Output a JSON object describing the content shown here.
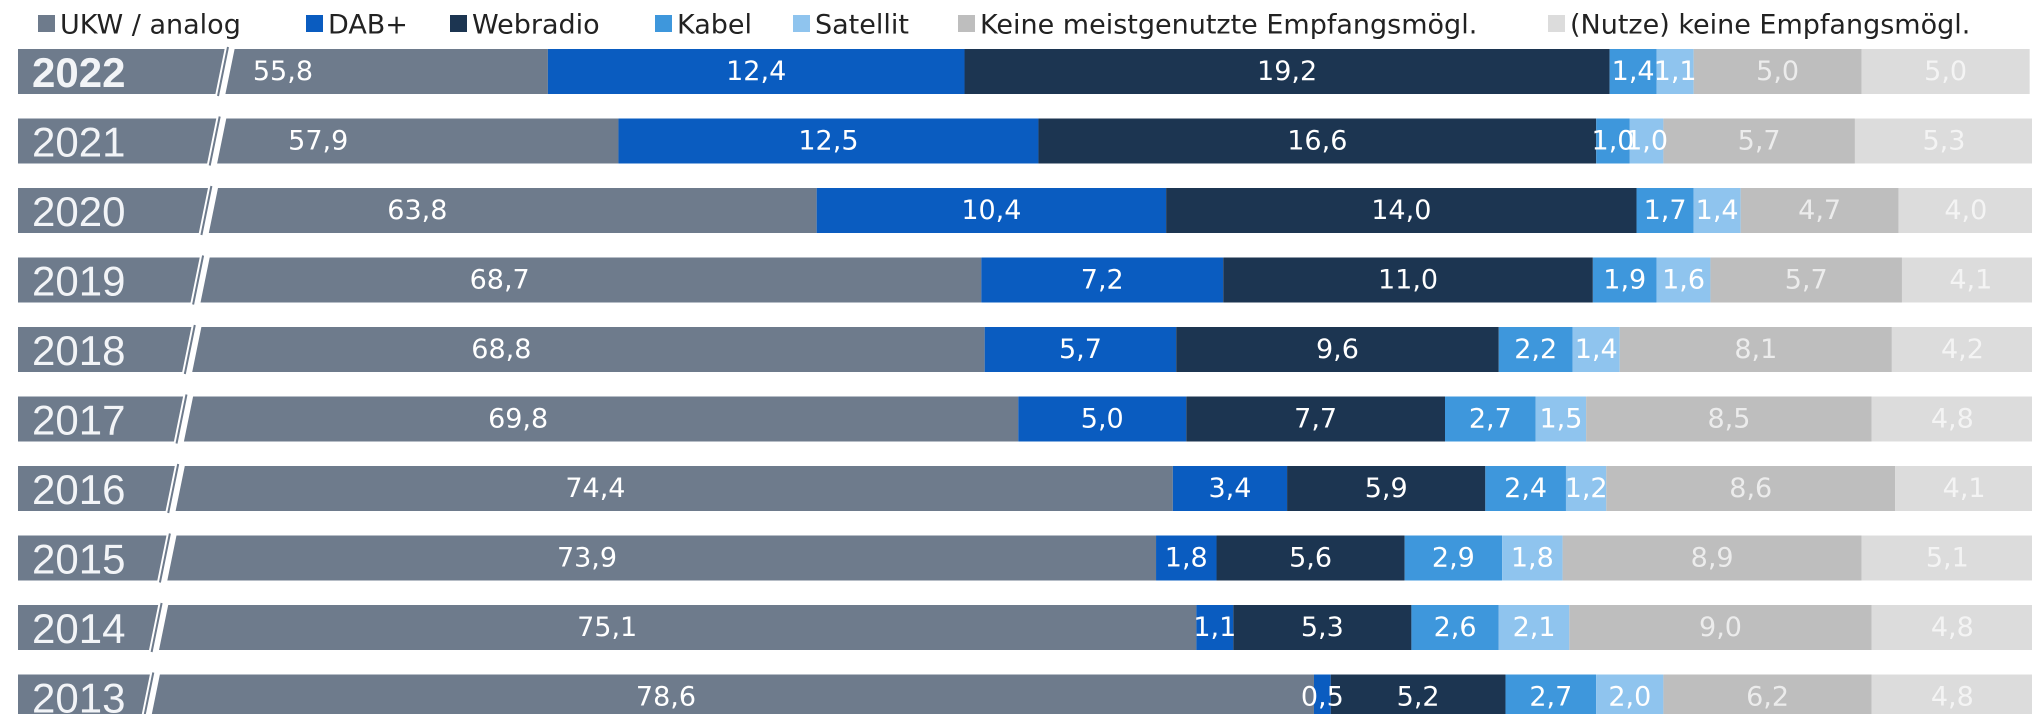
{
  "chart_data": {
    "type": "bar",
    "orientation": "horizontal",
    "stacked": true,
    "categories": [
      "2022",
      "2021",
      "2020",
      "2019",
      "2018",
      "2017",
      "2016",
      "2015",
      "2014",
      "2013"
    ],
    "series": [
      {
        "name": "UKW / analog",
        "color": "#6e7b8c",
        "values": [
          55.8,
          57.9,
          63.8,
          68.7,
          68.8,
          69.8,
          74.4,
          73.9,
          75.1,
          78.6
        ],
        "value_labels": [
          "55,8",
          "57,9",
          "63,8",
          "68,7",
          "68,8",
          "69,8",
          "74,4",
          "73,9",
          "75,1",
          "78,6"
        ]
      },
      {
        "name": "DAB+",
        "color": "#0a5cc0",
        "values": [
          12.4,
          12.5,
          10.4,
          7.2,
          5.7,
          5.0,
          3.4,
          1.8,
          1.1,
          0.5
        ],
        "value_labels": [
          "12,4",
          "12,5",
          "10,4",
          "7,2",
          "5,7",
          "5,0",
          "3,4",
          "1,8",
          "1,1",
          "0,5"
        ]
      },
      {
        "name": "Webradio",
        "color": "#1c3551",
        "values": [
          19.2,
          16.6,
          14.0,
          11.0,
          9.6,
          7.7,
          5.9,
          5.6,
          5.3,
          5.2
        ],
        "value_labels": [
          "19,2",
          "16,6",
          "14,0",
          "11,0",
          "9,6",
          "7,7",
          "5,9",
          "5,6",
          "5,3",
          "5,2"
        ]
      },
      {
        "name": "Kabel",
        "color": "#3e97dc",
        "values": [
          1.4,
          1.0,
          1.7,
          1.9,
          2.2,
          2.7,
          2.4,
          2.9,
          2.6,
          2.7
        ],
        "value_labels": [
          "1,4",
          "1,0",
          "1,7",
          "1,9",
          "2,2",
          "2,7",
          "2,4",
          "2,9",
          "2,6",
          "2,7"
        ]
      },
      {
        "name": "Satellit",
        "color": "#8fc4ee",
        "values": [
          1.1,
          1.0,
          1.4,
          1.6,
          1.4,
          1.5,
          1.2,
          1.8,
          2.1,
          2.0
        ],
        "value_labels": [
          "1,1",
          "1,0",
          "1,4",
          "1,6",
          "1,4",
          "1,5",
          "1,2",
          "1,8",
          "2,1",
          "2,0"
        ]
      },
      {
        "name": "Keine meistgenutzte Empfangsmögl.",
        "color": "#bebebe",
        "values": [
          5.0,
          5.7,
          4.7,
          5.7,
          8.1,
          8.5,
          8.6,
          8.9,
          9.0,
          6.2
        ],
        "value_labels": [
          "5,0",
          "5,7",
          "4,7",
          "5,7",
          "8,1",
          "8,5",
          "8,6",
          "8,9",
          "9,0",
          "6,2"
        ]
      },
      {
        "name": "(Nutze) keine Empfangsmögl.",
        "color": "#dcdcdc",
        "values": [
          5.0,
          5.3,
          4.0,
          4.1,
          4.2,
          4.8,
          4.1,
          5.1,
          4.8,
          4.8
        ],
        "value_labels": [
          "5,0",
          "5,3",
          "4,0",
          "4,1",
          "4,2",
          "4,8",
          "4,1",
          "5,1",
          "4,8",
          "4,8"
        ]
      }
    ]
  }
}
